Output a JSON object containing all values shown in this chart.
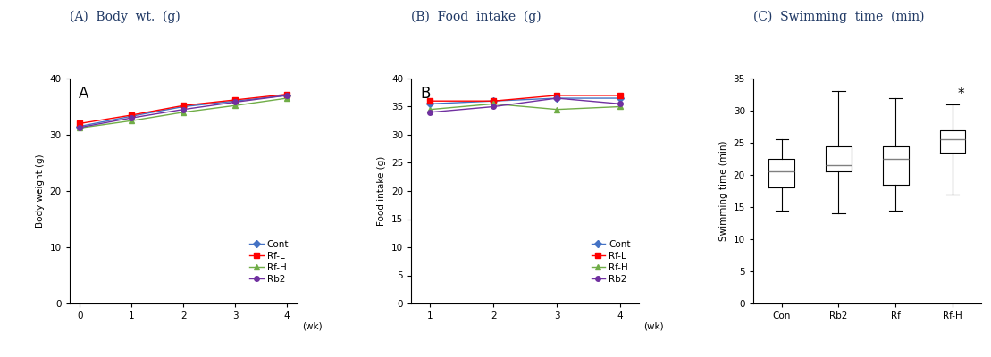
{
  "panel_titles": [
    "(A)  Body  wt.  (g)",
    "(B)  Food  intake  (g)",
    "(C)  Swimming  time  (min)"
  ],
  "body_wt": {
    "weeks": [
      0,
      1,
      2,
      3,
      4
    ],
    "Cont": [
      31.5,
      33.3,
      35.0,
      36.0,
      37.0
    ],
    "Rf-L": [
      32.0,
      33.5,
      35.2,
      36.2,
      37.2
    ],
    "Rf-H": [
      31.2,
      32.5,
      34.0,
      35.2,
      36.5
    ],
    "Rb2": [
      31.3,
      33.0,
      34.5,
      35.8,
      37.0
    ],
    "colors": {
      "Cont": "#4472C4",
      "Rf-L": "#FF0000",
      "Rf-H": "#70AD47",
      "Rb2": "#7030A0"
    },
    "markers": {
      "Cont": "D",
      "Rf-L": "s",
      "Rf-H": "^",
      "Rb2": "o"
    },
    "ylabel": "Body weight (g)",
    "xlabel": "(wk)",
    "ylim": [
      0,
      40
    ],
    "yticks": [
      0,
      10,
      20,
      30,
      40
    ],
    "xticks": [
      0,
      1,
      2,
      3,
      4
    ]
  },
  "food_intake": {
    "weeks": [
      1,
      2,
      3,
      4
    ],
    "Cont": [
      35.5,
      36.0,
      36.5,
      36.5
    ],
    "Rf-L": [
      36.0,
      36.0,
      37.0,
      37.0
    ],
    "Rf-H": [
      34.5,
      35.5,
      34.5,
      35.0
    ],
    "Rb2": [
      34.0,
      35.0,
      36.5,
      35.5
    ],
    "colors": {
      "Cont": "#4472C4",
      "Rf-L": "#FF0000",
      "Rf-H": "#70AD47",
      "Rb2": "#7030A0"
    },
    "markers": {
      "Cont": "D",
      "Rf-L": "s",
      "Rf-H": "^",
      "Rb2": "o"
    },
    "ylabel": "Food intake (g)",
    "xlabel": "(wk)",
    "ylim": [
      0,
      40
    ],
    "yticks": [
      0,
      5,
      10,
      15,
      20,
      25,
      30,
      35,
      40
    ],
    "xticks": [
      1,
      2,
      3,
      4
    ]
  },
  "swimming": {
    "categories": [
      "Con",
      "Rb2",
      "Rf",
      "Rf-H"
    ],
    "box_data": {
      "Con": {
        "whislo": 14.5,
        "q1": 18.0,
        "med": 20.5,
        "q3": 22.5,
        "whishi": 25.5
      },
      "Rb2": {
        "whislo": 14.0,
        "q1": 20.5,
        "med": 21.5,
        "q3": 24.5,
        "whishi": 33.0
      },
      "Rf": {
        "whislo": 14.5,
        "q1": 18.5,
        "med": 22.5,
        "q3": 24.5,
        "whishi": 32.0
      },
      "Rf-H": {
        "whislo": 17.0,
        "q1": 23.5,
        "med": 25.5,
        "q3": 27.0,
        "whishi": 31.0
      }
    },
    "ylabel": "Swimming time (min)",
    "ylim": [
      0,
      35
    ],
    "yticks": [
      0,
      5,
      10,
      15,
      20,
      25,
      30,
      35
    ],
    "significant": "Rf-H",
    "sig_label": "*"
  },
  "legend_order": [
    "Cont",
    "Rf-L",
    "Rf-H",
    "Rb2"
  ],
  "markersize": 4,
  "linewidth": 1.0,
  "fontsize_title": 10,
  "fontsize_label": 7.5,
  "fontsize_tick": 7.5,
  "fontsize_legend": 7.5,
  "fontsize_panel_label": 12
}
